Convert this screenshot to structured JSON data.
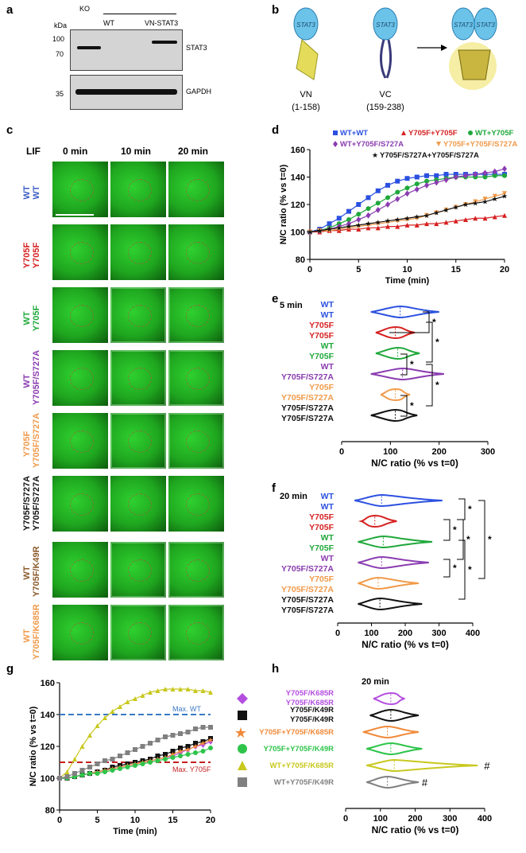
{
  "panels": {
    "a": "a",
    "b": "b",
    "c": "c",
    "d": "d",
    "e": "e",
    "f": "f",
    "g": "g",
    "h": "h"
  },
  "blot": {
    "kda": "kDa",
    "ko": "KO",
    "wt": "WT",
    "vn_stat3": "VN-STAT3",
    "m100": "100",
    "m70": "70",
    "m35": "35",
    "stat3": "STAT3",
    "gapdh": "GAPDH"
  },
  "schema": {
    "vn": "VN",
    "vn_range": "(1-158)",
    "vc": "VC",
    "vc_range": "(159-238)",
    "stat3": "STAT3"
  },
  "micro": {
    "lif": "LIF",
    "times": [
      "0 min",
      "10 min",
      "20 min"
    ],
    "rows": [
      {
        "top": "WT",
        "bottom": "WT",
        "c_top": "#3a5fc4",
        "c_bot": "#3a5fc4"
      },
      {
        "top": "Y705F",
        "bottom": "Y705F",
        "c_top": "#d62020",
        "c_bot": "#d62020"
      },
      {
        "top": "WT",
        "bottom": "Y705F",
        "c_top": "#1fa83a",
        "c_bot": "#1fa83a"
      },
      {
        "top": "WT",
        "bottom": "Y705F/S727A",
        "c_top": "#8a3cb0",
        "c_bot": "#8a3cb0"
      },
      {
        "top": "Y705F",
        "bottom": "Y705F/S727A",
        "c_top": "#f09a4a",
        "c_bot": "#f09a4a"
      },
      {
        "top": "Y705F/S727A",
        "bottom": "Y705F/S727A",
        "c_top": "#111111",
        "c_bot": "#111111"
      },
      {
        "top": "WT",
        "bottom": "Y705F/K49R",
        "c_top": "#8b5a2b",
        "c_bot": "#8b5a2b"
      },
      {
        "top": "WT",
        "bottom": "Y705F/K685R",
        "c_top": "#f09a4a",
        "c_bot": "#f09a4a"
      }
    ]
  },
  "chart_data": [
    {
      "id": "d",
      "type": "line",
      "xlabel": "Time (min)",
      "ylabel": "N/C ratio (% vs t=0)",
      "xlim": [
        0,
        20
      ],
      "ylim": [
        80,
        160
      ],
      "xticks": [
        0,
        5,
        10,
        15,
        20
      ],
      "yticks": [
        80,
        100,
        120,
        140,
        160
      ],
      "series": [
        {
          "name": "WT+WT",
          "color": "#2b50e0",
          "marker": "square",
          "x": [
            0,
            1,
            2,
            3,
            4,
            5,
            6,
            7,
            8,
            9,
            10,
            11,
            12,
            13,
            14,
            15,
            16,
            17,
            18,
            19,
            20
          ],
          "y": [
            100,
            102,
            106,
            110,
            115,
            120,
            125,
            130,
            134,
            137,
            139,
            140,
            141,
            141,
            142,
            142,
            142,
            142,
            142,
            142,
            142
          ]
        },
        {
          "name": "Y705F+Y705F",
          "color": "#d62020",
          "marker": "triangle",
          "x": [
            0,
            1,
            2,
            3,
            4,
            5,
            6,
            7,
            8,
            9,
            10,
            11,
            12,
            13,
            14,
            15,
            16,
            17,
            18,
            19,
            20
          ],
          "y": [
            100,
            100,
            101,
            101,
            102,
            102,
            103,
            103,
            104,
            104,
            105,
            105,
            106,
            106,
            107,
            108,
            109,
            110,
            110,
            111,
            112
          ]
        },
        {
          "name": "WT+Y705F",
          "color": "#1fa83a",
          "marker": "circle",
          "x": [
            0,
            1,
            2,
            3,
            4,
            5,
            6,
            7,
            8,
            9,
            10,
            11,
            12,
            13,
            14,
            15,
            16,
            17,
            18,
            19,
            20
          ],
          "y": [
            100,
            101,
            103,
            106,
            109,
            113,
            117,
            121,
            125,
            129,
            132,
            135,
            137,
            138,
            139,
            140,
            140,
            140,
            140,
            141,
            141
          ]
        },
        {
          "name": "WT+Y705F/S727A",
          "color": "#8a3cb0",
          "marker": "diamond",
          "x": [
            0,
            1,
            2,
            3,
            4,
            5,
            6,
            7,
            8,
            9,
            10,
            11,
            12,
            13,
            14,
            15,
            16,
            17,
            18,
            19,
            20
          ],
          "y": [
            100,
            101,
            102,
            104,
            106,
            109,
            112,
            116,
            120,
            124,
            128,
            131,
            134,
            136,
            138,
            140,
            141,
            142,
            143,
            144,
            146
          ]
        },
        {
          "name": "Y705F+Y705F/S727A",
          "color": "#f09a4a",
          "marker": "triangle-down",
          "x": [
            0,
            1,
            2,
            3,
            4,
            5,
            6,
            7,
            8,
            9,
            10,
            11,
            12,
            13,
            14,
            15,
            16,
            17,
            18,
            19,
            20
          ],
          "y": [
            100,
            101,
            101,
            102,
            103,
            104,
            105,
            106,
            107,
            108,
            109,
            110,
            112,
            114,
            116,
            118,
            120,
            122,
            124,
            126,
            128
          ]
        },
        {
          "name": "Y705F/S727A+Y705F/S727A",
          "color": "#111111",
          "marker": "star",
          "x": [
            0,
            1,
            2,
            3,
            4,
            5,
            6,
            7,
            8,
            9,
            10,
            11,
            12,
            13,
            14,
            15,
            16,
            17,
            18,
            19,
            20
          ],
          "y": [
            100,
            101,
            102,
            103,
            104,
            105,
            106,
            107,
            108,
            109,
            110,
            111,
            112,
            114,
            116,
            118,
            120,
            121,
            122,
            124,
            126
          ]
        }
      ]
    },
    {
      "id": "e",
      "type": "violin",
      "title": "5 min",
      "xlabel": "N/C ratio (% vs t=0)",
      "xlim": [
        0,
        300
      ],
      "xticks": [
        0,
        100,
        200,
        300
      ],
      "groups": [
        {
          "top": "WT",
          "bottom": "WT",
          "color": "#2b50e0",
          "median": 120,
          "min": 60,
          "max": 200
        },
        {
          "top": "Y705F",
          "bottom": "Y705F",
          "color": "#d62020",
          "median": 110,
          "min": 70,
          "max": 150
        },
        {
          "top": "WT",
          "bottom": "Y705F",
          "color": "#1fa83a",
          "median": 115,
          "min": 70,
          "max": 160
        },
        {
          "top": "WT",
          "bottom": "Y705F/S727A",
          "color": "#8a3cb0",
          "median": 125,
          "min": 60,
          "max": 210
        },
        {
          "top": "Y705F",
          "bottom": "Y705F/S727A",
          "color": "#f09a4a",
          "median": 110,
          "min": 80,
          "max": 140
        },
        {
          "top": "Y705F/S727A",
          "bottom": "Y705F/S727A",
          "color": "#111111",
          "median": 110,
          "min": 60,
          "max": 155
        }
      ],
      "sig": "*"
    },
    {
      "id": "f",
      "type": "violin",
      "title": "20 min",
      "xlabel": "N/C ratio (% vs t=0)",
      "xlim": [
        0,
        400
      ],
      "xticks": [
        0,
        100,
        200,
        300,
        400
      ],
      "groups": [
        {
          "top": "WT",
          "bottom": "WT",
          "color": "#2b50e0",
          "median": 130,
          "min": 50,
          "max": 310
        },
        {
          "top": "Y705F",
          "bottom": "Y705F",
          "color": "#d62020",
          "median": 110,
          "min": 70,
          "max": 175
        },
        {
          "top": "WT",
          "bottom": "Y705F",
          "color": "#1fa83a",
          "median": 135,
          "min": 60,
          "max": 280
        },
        {
          "top": "WT",
          "bottom": "Y705F/S727A",
          "color": "#8a3cb0",
          "median": 130,
          "min": 60,
          "max": 270
        },
        {
          "top": "Y705F",
          "bottom": "Y705F/S727A",
          "color": "#f09a4a",
          "median": 120,
          "min": 60,
          "max": 240
        },
        {
          "top": "Y705F/S727A",
          "bottom": "Y705F/S727A",
          "color": "#111111",
          "median": 125,
          "min": 60,
          "max": 250
        }
      ],
      "sig": "*"
    },
    {
      "id": "g",
      "type": "line",
      "xlabel": "Time (min)",
      "ylabel": "N/C ratio (% vs t=0)",
      "xlim": [
        0,
        20
      ],
      "ylim": [
        80,
        160
      ],
      "xticks": [
        0,
        5,
        10,
        15,
        20
      ],
      "yticks": [
        80,
        100,
        120,
        140,
        160
      ],
      "hlines": [
        {
          "y": 140,
          "label": "Max. WT",
          "color": "#3a7ac4"
        },
        {
          "y": 110,
          "label": "Max. Y705F",
          "color": "#c41f1f"
        }
      ],
      "series": [
        {
          "name": "Y705F/K685R+Y705F/K685R",
          "color": "#b44ee0",
          "marker": "diamond",
          "x": [
            0,
            1,
            2,
            3,
            4,
            5,
            6,
            7,
            8,
            9,
            10,
            11,
            12,
            13,
            14,
            15,
            16,
            17,
            18,
            19,
            20
          ],
          "y": [
            100,
            100,
            101,
            102,
            103,
            104,
            105,
            106,
            107,
            108,
            109,
            110,
            111,
            112,
            113,
            114,
            116,
            118,
            120,
            121,
            123
          ]
        },
        {
          "name": "Y705F/K49R+Y705F/K49R",
          "color": "#111111",
          "marker": "square",
          "x": [
            0,
            1,
            2,
            3,
            4,
            5,
            6,
            7,
            8,
            9,
            10,
            11,
            12,
            13,
            14,
            15,
            16,
            17,
            18,
            19,
            20
          ],
          "y": [
            100,
            100,
            101,
            102,
            103,
            104,
            105,
            107,
            108,
            109,
            110,
            111,
            112,
            114,
            115,
            117,
            119,
            120,
            122,
            123,
            125
          ]
        },
        {
          "name": "Y705F+Y705F/K685R",
          "color": "#f08a3a",
          "marker": "star",
          "x": [
            0,
            1,
            2,
            3,
            4,
            5,
            6,
            7,
            8,
            9,
            10,
            11,
            12,
            13,
            14,
            15,
            16,
            17,
            18,
            19,
            20
          ],
          "y": [
            100,
            100,
            101,
            102,
            103,
            104,
            105,
            106,
            107,
            108,
            109,
            110,
            111,
            112,
            113,
            115,
            117,
            118,
            120,
            122,
            124
          ]
        },
        {
          "name": "Y705F+Y705F/K49R",
          "color": "#2ec44a",
          "marker": "circle",
          "x": [
            0,
            1,
            2,
            3,
            4,
            5,
            6,
            7,
            8,
            9,
            10,
            11,
            12,
            13,
            14,
            15,
            16,
            17,
            18,
            19,
            20
          ],
          "y": [
            100,
            100,
            101,
            102,
            103,
            103,
            104,
            105,
            106,
            107,
            108,
            109,
            110,
            111,
            112,
            113,
            114,
            115,
            116,
            117,
            119
          ]
        },
        {
          "name": "WT+Y705F/K685R",
          "color": "#c8c81e",
          "marker": "triangle",
          "x": [
            0,
            1,
            2,
            3,
            4,
            5,
            6,
            7,
            8,
            9,
            10,
            11,
            12,
            13,
            14,
            15,
            16,
            17,
            18,
            19,
            20
          ],
          "y": [
            100,
            104,
            112,
            120,
            127,
            133,
            138,
            142,
            145,
            148,
            150,
            152,
            154,
            155,
            156,
            156,
            156,
            156,
            155,
            155,
            154
          ]
        },
        {
          "name": "WT+Y705F/K49R",
          "color": "#808080",
          "marker": "square",
          "x": [
            0,
            1,
            2,
            3,
            4,
            5,
            6,
            7,
            8,
            9,
            10,
            11,
            12,
            13,
            14,
            15,
            16,
            17,
            18,
            19,
            20
          ],
          "y": [
            100,
            101,
            103,
            105,
            107,
            109,
            111,
            112,
            114,
            116,
            118,
            120,
            122,
            124,
            126,
            127,
            128,
            129,
            131,
            132,
            132
          ]
        }
      ]
    },
    {
      "id": "h",
      "type": "violin",
      "title": "20 min",
      "xlabel": "N/C ratio (% vs t=0)",
      "xlim": [
        0,
        400
      ],
      "xticks": [
        0,
        100,
        200,
        300,
        400
      ],
      "groups": [
        {
          "label": "Y705F/K685R\nY705F/K685R",
          "color": "#b44ee0",
          "median": 130,
          "min": 80,
          "max": 170,
          "mark": ""
        },
        {
          "label": "Y705F/K49R\nY705F/K49R",
          "color": "#111111",
          "median": 130,
          "min": 70,
          "max": 210,
          "mark": ""
        },
        {
          "label": "Y705F+Y705F/K685R",
          "color": "#f08a3a",
          "median": 120,
          "min": 50,
          "max": 210,
          "mark": ""
        },
        {
          "label": "Y705F+Y705F/K49R",
          "color": "#2ec44a",
          "median": 130,
          "min": 60,
          "max": 220,
          "mark": ""
        },
        {
          "label": "WT+Y705F/K685R",
          "color": "#c8c81e",
          "median": 140,
          "min": 60,
          "max": 380,
          "mark": "#"
        },
        {
          "label": "WT+Y705F/K49R",
          "color": "#808080",
          "median": 120,
          "min": 60,
          "max": 210,
          "mark": "#"
        }
      ]
    }
  ]
}
